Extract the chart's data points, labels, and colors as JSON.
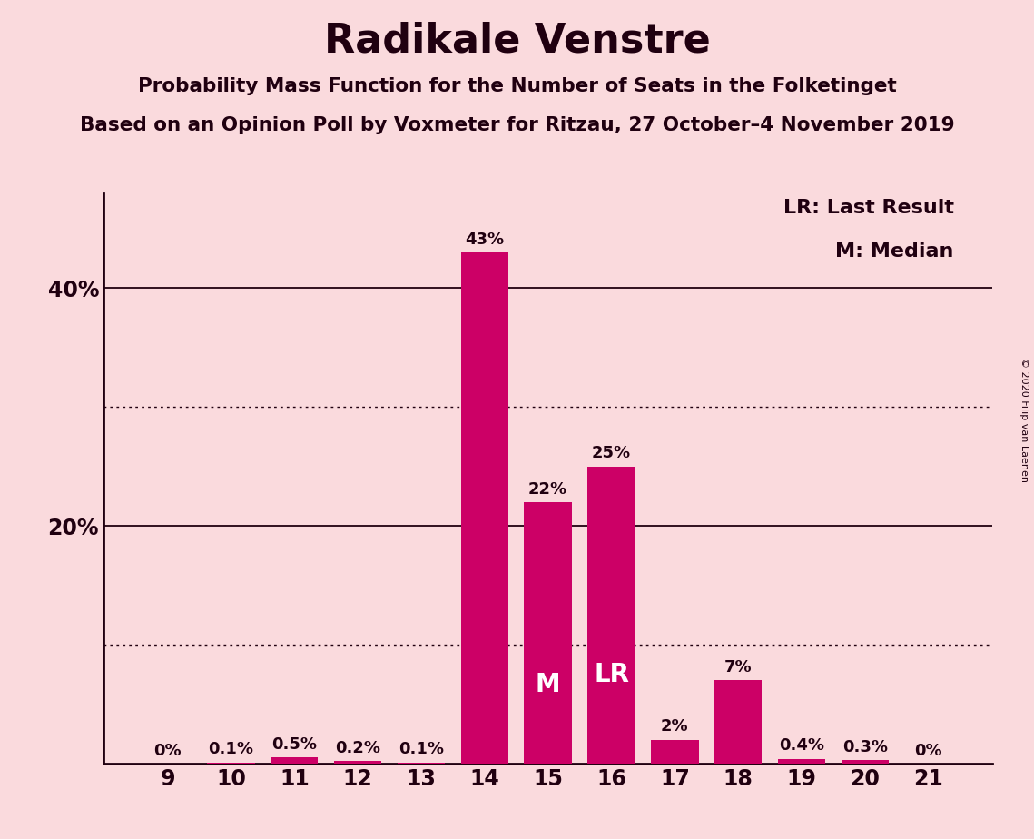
{
  "title": "Radikale Venstre",
  "subtitle1": "Probability Mass Function for the Number of Seats in the Folketinget",
  "subtitle2": "Based on an Opinion Poll by Voxmeter for Ritzau, 27 October–4 November 2019",
  "copyright": "© 2020 Filip van Laenen",
  "legend_lr": "LR: Last Result",
  "legend_m": "M: Median",
  "categories": [
    9,
    10,
    11,
    12,
    13,
    14,
    15,
    16,
    17,
    18,
    19,
    20,
    21
  ],
  "values": [
    0.0,
    0.1,
    0.5,
    0.2,
    0.1,
    43.0,
    22.0,
    25.0,
    2.0,
    7.0,
    0.4,
    0.3,
    0.0
  ],
  "labels": [
    "0%",
    "0.1%",
    "0.5%",
    "0.2%",
    "0.1%",
    "43%",
    "22%",
    "25%",
    "2%",
    "7%",
    "0.4%",
    "0.3%",
    "0%"
  ],
  "bar_color": "#CC0066",
  "background_color": "#FADADD",
  "text_color": "#200010",
  "median_seat": 15,
  "lr_seat": 16,
  "ylim": [
    0,
    48
  ],
  "ytick_labeled": [
    20,
    40
  ],
  "ytick_dotted": [
    10,
    30
  ],
  "ytick_solid": [
    20,
    40
  ]
}
